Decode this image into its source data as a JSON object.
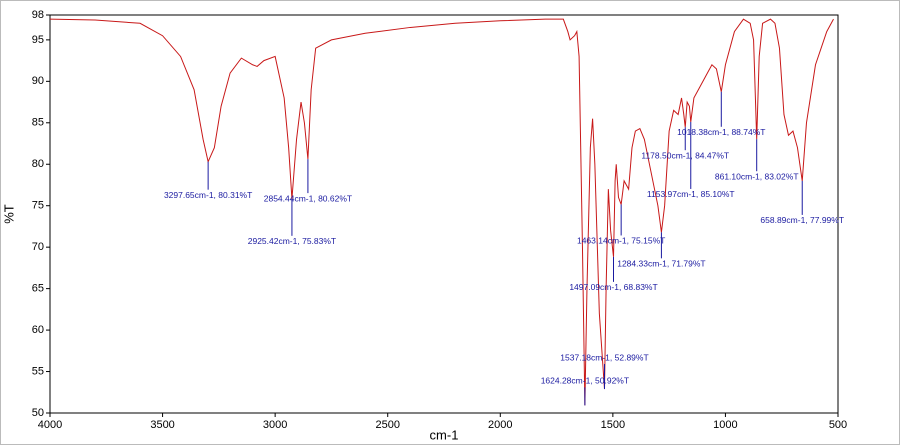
{
  "chart_data": {
    "type": "line",
    "x_label": "cm-1",
    "y_label": "%T",
    "xlim": [
      4000,
      500
    ],
    "ylim": [
      50,
      98
    ],
    "xticks": [
      4000,
      3500,
      3000,
      2500,
      2000,
      1500,
      1000,
      500
    ],
    "yticks": [
      50,
      55,
      60,
      65,
      70,
      75,
      80,
      85,
      90,
      95,
      98
    ],
    "color": "#c81818",
    "peak_color": "#1a1aa0",
    "x": [
      4000,
      3800,
      3600,
      3500,
      3420,
      3360,
      3320,
      3297.65,
      3270,
      3240,
      3200,
      3150,
      3100,
      3080,
      3050,
      3000,
      2960,
      2940,
      2925.42,
      2905,
      2885,
      2870,
      2854.44,
      2840,
      2820,
      2750,
      2600,
      2400,
      2200,
      2000,
      1800,
      1720,
      1700,
      1690,
      1670,
      1660,
      1650,
      1635,
      1624.28,
      1615,
      1600,
      1590,
      1580,
      1560,
      1545,
      1537.18,
      1530,
      1520,
      1510,
      1497.09,
      1490,
      1485,
      1475,
      1463.14,
      1450,
      1430,
      1415,
      1400,
      1380,
      1360,
      1330,
      1300,
      1284.33,
      1270,
      1250,
      1230,
      1210,
      1195,
      1185,
      1178.5,
      1170,
      1160,
      1153.97,
      1140,
      1110,
      1080,
      1060,
      1040,
      1018.38,
      1000,
      960,
      920,
      890,
      875,
      861.1,
      850,
      835,
      800,
      780,
      760,
      740,
      720,
      700,
      680,
      658.89,
      640,
      600,
      550,
      520
    ],
    "values": [
      97.5,
      97.4,
      97,
      95.5,
      93,
      89,
      83,
      80.31,
      82,
      87,
      91,
      92.8,
      92,
      91.8,
      92.5,
      93,
      88,
      82,
      75.83,
      83,
      87.5,
      85,
      80.62,
      89,
      94,
      95,
      95.8,
      96.5,
      97,
      97.3,
      97.5,
      97.5,
      96,
      95,
      95.5,
      96,
      93,
      70,
      50.92,
      65,
      82,
      85.5,
      80,
      62,
      56,
      52.89,
      65,
      77,
      72,
      68.83,
      78,
      80,
      76,
      75.15,
      78,
      77,
      82,
      84,
      84.3,
      83,
      79,
      75,
      71.79,
      75,
      84,
      86.5,
      86,
      88,
      86,
      84.47,
      87.5,
      87,
      85.1,
      88,
      89.5,
      91,
      92,
      91.5,
      88.74,
      92,
      96,
      97.5,
      97,
      95,
      83.02,
      93,
      97,
      97.5,
      97,
      94,
      86,
      83.5,
      84,
      82,
      77.99,
      85,
      92,
      96,
      97.5
    ],
    "peaks": [
      {
        "x": 3297.65,
        "value": 80.31,
        "label": "3297.65cm-1, 80.31%T"
      },
      {
        "x": 2925.42,
        "value": 75.83,
        "label": "2925.42cm-1, 75.83%T"
      },
      {
        "x": 2854.44,
        "value": 80.62,
        "label": "2854.44cm-1, 80.62%T"
      },
      {
        "x": 1624.28,
        "value": 50.92,
        "label": "1624.28cm-1, 50.92%T"
      },
      {
        "x": 1537.18,
        "value": 52.89,
        "label": "1537.18cm-1, 52.89%T"
      },
      {
        "x": 1497.09,
        "value": 68.83,
        "label": "1497.09cm-1, 68.83%T"
      },
      {
        "x": 1463.14,
        "value": 75.15,
        "label": "1463.14cm-1, 75.15%T"
      },
      {
        "x": 1284.33,
        "value": 71.79,
        "label": "1284.33cm-1, 71.79%T"
      },
      {
        "x": 1153.97,
        "value": 85.1,
        "label": "1153.97cm-1, 85.10%T"
      },
      {
        "x": 1178.5,
        "value": 84.47,
        "label": "1178.50cm-1, 84.47%T"
      },
      {
        "x": 1018.38,
        "value": 88.74,
        "label": "1018.38cm-1, 88.74%T"
      },
      {
        "x": 861.1,
        "value": 83.02,
        "label": "861.10cm-1, 83.02%T"
      },
      {
        "x": 658.89,
        "value": 77.99,
        "label": "658.89cm-1, 77.99%T"
      }
    ]
  }
}
